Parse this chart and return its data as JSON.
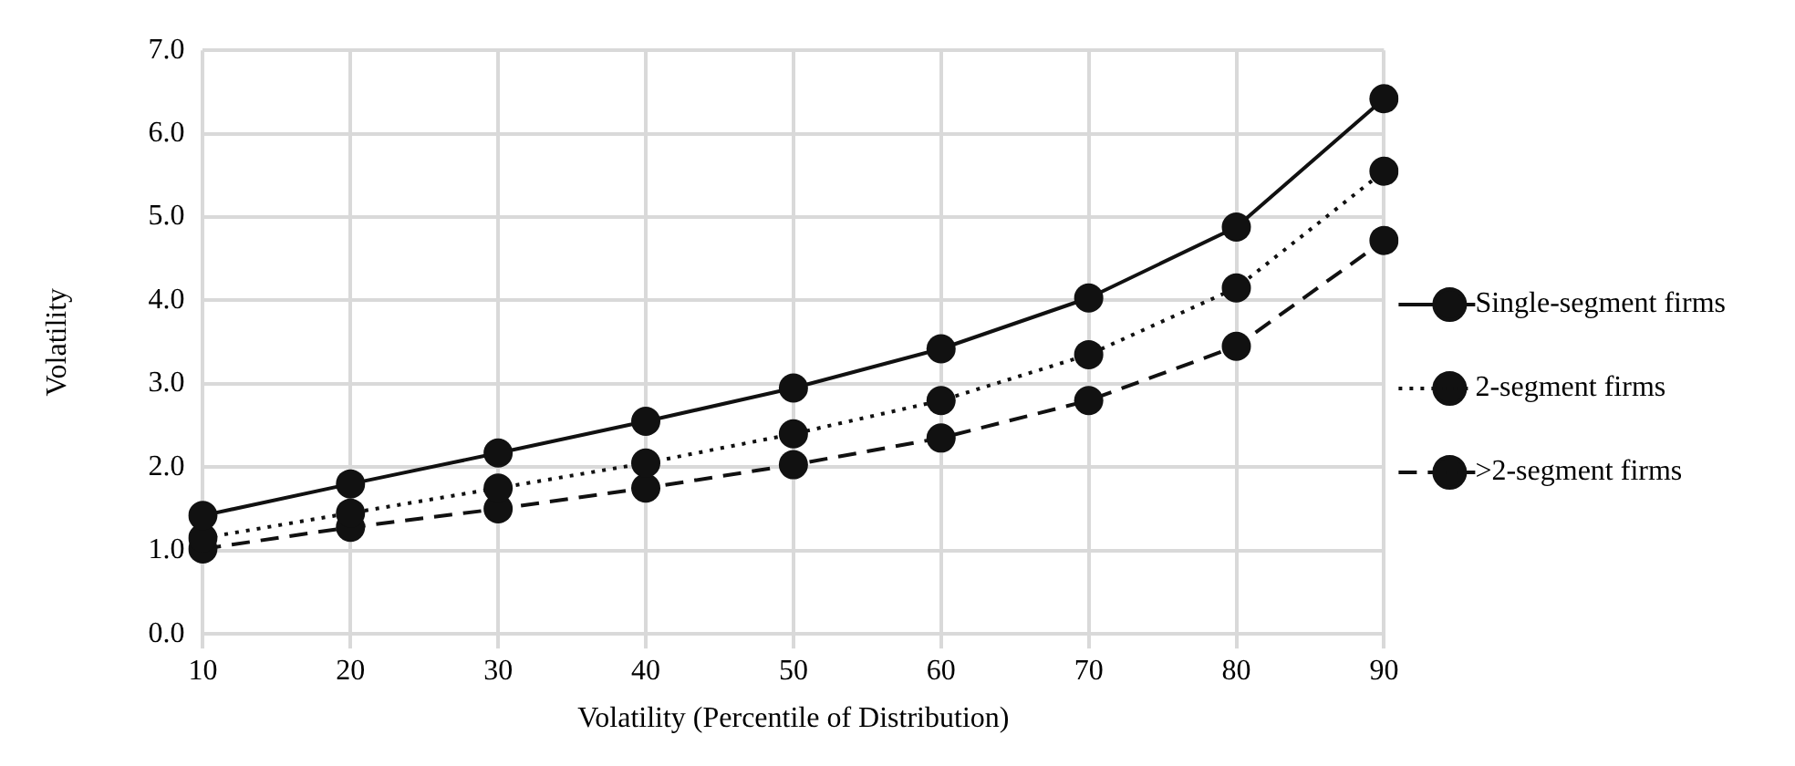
{
  "chart_data": {
    "type": "line",
    "xlabel": "Volatility (Percentile of Distribution)",
    "ylabel": "Volatility",
    "categories": [
      "10",
      "20",
      "30",
      "40",
      "50",
      "60",
      "70",
      "80",
      "90"
    ],
    "series": [
      {
        "name": "Single-segment firms",
        "color": "#111111",
        "line_style": "solid",
        "values": [
          1.42,
          1.8,
          2.17,
          2.55,
          2.95,
          3.42,
          4.03,
          4.88,
          6.42
        ]
      },
      {
        "name": "2-segment firms",
        "color": "#111111",
        "line_style": "dotted",
        "values": [
          1.15,
          1.45,
          1.75,
          2.05,
          2.4,
          2.8,
          3.35,
          4.15,
          5.55
        ]
      },
      {
        "name": ">2-segment firms",
        "color": "#111111",
        "line_style": "dashed",
        "values": [
          1.02,
          1.28,
          1.5,
          1.75,
          2.03,
          2.35,
          2.8,
          3.45,
          4.72
        ]
      }
    ],
    "ylim": [
      0,
      7
    ],
    "yticks": [
      {
        "value": 0,
        "label": "0.0"
      },
      {
        "value": 1,
        "label": "1.0"
      },
      {
        "value": 2,
        "label": "2.0"
      },
      {
        "value": 3,
        "label": "3.0"
      },
      {
        "value": 4,
        "label": "4.0"
      },
      {
        "value": 5,
        "label": "5.0"
      },
      {
        "value": 6,
        "label": "6.0"
      },
      {
        "value": 7,
        "label": "7.0"
      }
    ],
    "grid": true,
    "legend": "right",
    "marker": "circle"
  }
}
